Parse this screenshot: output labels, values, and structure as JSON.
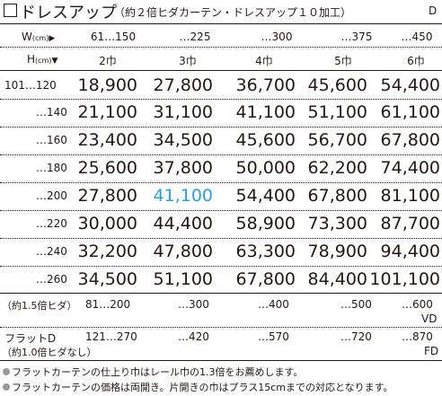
{
  "title": "ドレスアップ",
  "subtitle": "（約２倍ヒダカーテン・ドレスアップ１０加工）",
  "code": "D",
  "width_header": {
    "label": "W",
    "unit": "(cm)",
    "arrow": "▶"
  },
  "height_header": {
    "label": "H",
    "unit": "(cm)",
    "arrow": "▼"
  },
  "width_ranges": [
    "61…150",
    "…225",
    "…300",
    "…375",
    "…450"
  ],
  "panel_widths": [
    "2巾",
    "3巾",
    "4巾",
    "5巾",
    "6巾"
  ],
  "rows": [
    {
      "height": "101…120",
      "prices": [
        "18,900",
        "27,800",
        "36,700",
        "45,600",
        "54,400"
      ]
    },
    {
      "height": "…140",
      "prices": [
        "21,100",
        "31,100",
        "41,100",
        "51,100",
        "61,100"
      ]
    },
    {
      "height": "…160",
      "prices": [
        "23,400",
        "34,500",
        "45,600",
        "56,700",
        "67,800"
      ]
    },
    {
      "height": "…180",
      "prices": [
        "25,600",
        "37,800",
        "50,000",
        "62,200",
        "74,400"
      ]
    },
    {
      "height": "…200",
      "prices": [
        "27,800",
        "41,100",
        "54,400",
        "67,800",
        "81,100"
      ]
    },
    {
      "height": "…220",
      "prices": [
        "30,000",
        "44,400",
        "58,900",
        "73,300",
        "87,700"
      ]
    },
    {
      "height": "…240",
      "prices": [
        "32,200",
        "47,800",
        "63,300",
        "78,900",
        "94,400"
      ]
    },
    {
      "height": "…260",
      "prices": [
        "34,500",
        "51,100",
        "67,800",
        "84,400",
        "101,100"
      ]
    }
  ],
  "highlight_color": "#2a9fd8",
  "vd_row": {
    "label": "（約1.5倍ヒダ）",
    "widths": [
      "81…200",
      "…300",
      "…400",
      "…500",
      "…600"
    ],
    "code": "VD"
  },
  "fd_row": {
    "label1": "フラットD",
    "label2": "（約1.0倍ヒダなし）",
    "widths": [
      "121…270",
      "…420",
      "…570",
      "…720",
      "…870"
    ],
    "code": "FD"
  },
  "notes": [
    "フラットカーテンの仕上り巾はレール巾の1.3倍をお薦めします。",
    "フラットカーテンの価格は両開き。片開きの巾はプラス15cmまでの対応となります。"
  ]
}
